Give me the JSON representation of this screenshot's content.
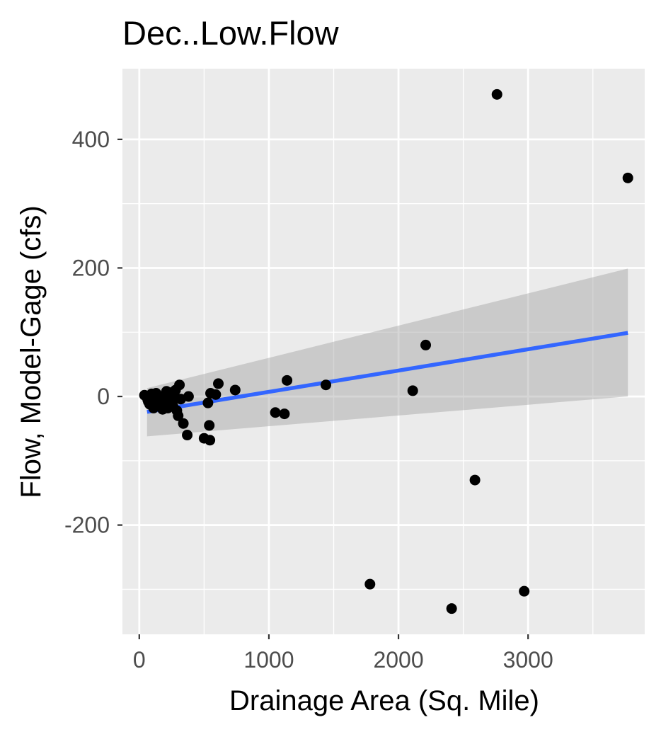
{
  "chart_data": {
    "type": "scatter",
    "title": "Dec..Low.Flow",
    "xlabel": "Drainage Area (Sq. Mile)",
    "ylabel": "Flow, Model-Gage (cfs)",
    "xlim": [
      -130,
      3900
    ],
    "ylim": [
      -370,
      510
    ],
    "x_ticks": [
      0,
      1000,
      2000,
      3000
    ],
    "x_tick_labels": [
      "0",
      "1000",
      "2000",
      "3000"
    ],
    "x_minor_ticks": [
      500,
      1500,
      2500,
      3500
    ],
    "y_ticks": [
      -200,
      0,
      200,
      400
    ],
    "y_tick_labels": [
      "-200",
      "0",
      "200",
      "400"
    ],
    "y_minor_ticks": [
      -300,
      -100,
      100,
      300
    ],
    "grid": true,
    "legend": "none",
    "points": [
      [
        40,
        2
      ],
      [
        55,
        0
      ],
      [
        65,
        -5
      ],
      [
        70,
        -8
      ],
      [
        80,
        -12
      ],
      [
        90,
        -3
      ],
      [
        95,
        4
      ],
      [
        100,
        1
      ],
      [
        110,
        -18
      ],
      [
        115,
        2
      ],
      [
        120,
        -10
      ],
      [
        130,
        5
      ],
      [
        140,
        -15
      ],
      [
        150,
        -2
      ],
      [
        160,
        -8
      ],
      [
        170,
        0
      ],
      [
        180,
        -20
      ],
      [
        190,
        -5
      ],
      [
        200,
        -12
      ],
      [
        210,
        8
      ],
      [
        215,
        -3
      ],
      [
        220,
        -18
      ],
      [
        230,
        3
      ],
      [
        240,
        6
      ],
      [
        250,
        -8
      ],
      [
        260,
        -15
      ],
      [
        270,
        2
      ],
      [
        280,
        10
      ],
      [
        290,
        -22
      ],
      [
        300,
        -30
      ],
      [
        310,
        18
      ],
      [
        320,
        -4
      ],
      [
        340,
        -42
      ],
      [
        370,
        -60
      ],
      [
        380,
        0
      ],
      [
        500,
        -65
      ],
      [
        530,
        -10
      ],
      [
        540,
        -45
      ],
      [
        545,
        -68
      ],
      [
        550,
        5
      ],
      [
        590,
        3
      ],
      [
        610,
        20
      ],
      [
        740,
        10
      ],
      [
        1050,
        -25
      ],
      [
        1120,
        -27
      ],
      [
        1140,
        25
      ],
      [
        1440,
        18
      ],
      [
        1780,
        -292
      ],
      [
        2110,
        9
      ],
      [
        2210,
        80
      ],
      [
        2410,
        -330
      ],
      [
        2590,
        -130
      ],
      [
        2760,
        470
      ],
      [
        2970,
        -303
      ],
      [
        3770,
        340
      ]
    ],
    "trend": {
      "type": "linear",
      "color": "#3366ff",
      "band_color": "#999999",
      "x_range": [
        60,
        3770
      ],
      "fit": [
        -24,
        99
      ],
      "band_lower": [
        -62,
        0
      ],
      "band_upper": [
        13,
        199
      ]
    },
    "colors": {
      "panel_background": "#ebebeb",
      "grid": "#ffffff",
      "points": "#000000"
    }
  }
}
